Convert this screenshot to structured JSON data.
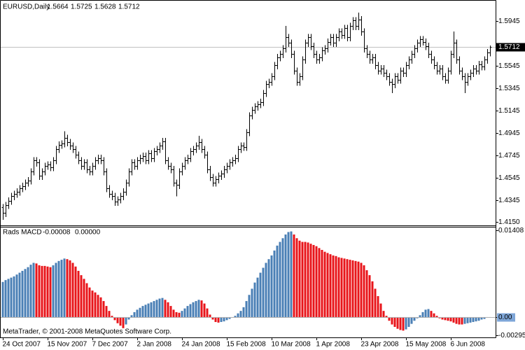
{
  "chart_data": [
    {
      "type": "ohlc",
      "title": "EURUSD,Daily",
      "color": "#000000",
      "last_line_color": "#c0c0c0",
      "categories": [
        "24 Oct 2007",
        null,
        null,
        null,
        null,
        null,
        null,
        null,
        null,
        null,
        null,
        null,
        null,
        null,
        null,
        null,
        "15 Nov 2007",
        null,
        null,
        null,
        null,
        null,
        null,
        null,
        null,
        null,
        null,
        null,
        null,
        null,
        null,
        null,
        "7 Dec 2007",
        null,
        null,
        null,
        null,
        null,
        null,
        null,
        null,
        null,
        null,
        null,
        null,
        null,
        null,
        null,
        "2 Jan 2008",
        null,
        null,
        null,
        null,
        null,
        null,
        null,
        null,
        null,
        null,
        null,
        null,
        null,
        null,
        null,
        "24 Jan 2008",
        null,
        null,
        null,
        null,
        null,
        null,
        null,
        null,
        null,
        null,
        null,
        null,
        null,
        null,
        null,
        "15 Feb 2008",
        null,
        null,
        null,
        null,
        null,
        null,
        null,
        null,
        null,
        null,
        null,
        null,
        null,
        null,
        null,
        "10 Mar 2008",
        null,
        null,
        null,
        null,
        null,
        null,
        null,
        null,
        null,
        null,
        null,
        null,
        null,
        null,
        null,
        "1 Apr 2008",
        null,
        null,
        null,
        null,
        null,
        null,
        null,
        null,
        null,
        null,
        null,
        null,
        null,
        null,
        null,
        "23 Apr 2008",
        null,
        null,
        null,
        null,
        null,
        null,
        null,
        null,
        null,
        null,
        null,
        null,
        null,
        null,
        null,
        "15 May 2008",
        null,
        null,
        null,
        null,
        null,
        null,
        null,
        null,
        null,
        null,
        null,
        null,
        null,
        null,
        null,
        "6 Jun 2008",
        null,
        null,
        null,
        null,
        null,
        null,
        null,
        null,
        null,
        null,
        null,
        null,
        null,
        null
      ],
      "open": [
        1.428,
        1.423,
        1.43,
        1.434,
        1.438,
        1.44,
        1.442,
        1.445,
        1.447,
        1.45,
        1.452,
        1.46,
        1.47,
        1.468,
        1.456,
        1.46,
        1.465,
        1.466,
        1.464,
        1.47,
        1.48,
        1.484,
        1.485,
        1.49,
        1.486,
        1.483,
        1.48,
        1.475,
        1.47,
        1.465,
        1.468,
        1.462,
        1.46,
        1.465,
        1.47,
        1.472,
        1.47,
        1.46,
        1.445,
        1.44,
        1.438,
        1.433,
        1.435,
        1.438,
        1.442,
        1.45,
        1.46,
        1.468,
        1.465,
        1.47,
        1.472,
        1.474,
        1.47,
        1.476,
        1.472,
        1.478,
        1.48,
        1.483,
        1.487,
        1.47,
        1.465,
        1.462,
        1.45,
        1.448,
        1.46,
        1.465,
        1.47,
        1.472,
        1.478,
        1.48,
        1.483,
        1.486,
        1.48,
        1.475,
        1.462,
        1.455,
        1.45,
        1.453,
        1.456,
        1.458,
        1.462,
        1.465,
        1.468,
        1.47,
        1.472,
        1.48,
        1.483,
        1.482,
        1.495,
        1.51,
        1.515,
        1.518,
        1.52,
        1.522,
        1.53,
        1.538,
        1.54,
        1.545,
        1.555,
        1.562,
        1.565,
        1.57,
        1.58,
        1.575,
        1.565,
        1.55,
        1.54,
        1.545,
        1.56,
        1.575,
        1.58,
        1.572,
        1.565,
        1.56,
        1.562,
        1.568,
        1.57,
        1.576,
        1.58,
        1.575,
        1.58,
        1.585,
        1.582,
        1.588,
        1.58,
        1.59,
        1.595,
        1.59,
        1.596,
        1.585,
        1.57,
        1.565,
        1.56,
        1.562,
        1.555,
        1.55,
        1.552,
        1.548,
        1.545,
        1.54,
        1.538,
        1.545,
        1.542,
        1.55,
        1.548,
        1.555,
        1.56,
        1.565,
        1.57,
        1.575,
        1.578,
        1.576,
        1.572,
        1.565,
        1.56,
        1.555,
        1.55,
        1.552,
        1.545,
        1.542,
        1.55,
        1.565,
        1.575,
        1.56,
        1.55,
        1.545,
        1.54,
        1.545,
        1.548,
        1.552,
        1.55,
        1.556,
        1.554,
        1.56,
        1.5664
      ],
      "high": [
        1.431,
        1.433,
        1.437,
        1.441,
        1.443,
        1.445,
        1.448,
        1.45,
        1.453,
        1.455,
        1.463,
        1.473,
        1.473,
        1.471,
        1.463,
        1.468,
        1.469,
        1.469,
        1.473,
        1.483,
        1.487,
        1.488,
        1.496,
        1.493,
        1.489,
        1.486,
        1.483,
        1.478,
        1.473,
        1.471,
        1.471,
        1.465,
        1.468,
        1.473,
        1.475,
        1.475,
        1.473,
        1.463,
        1.448,
        1.443,
        1.441,
        1.438,
        1.441,
        1.445,
        1.453,
        1.463,
        1.471,
        1.471,
        1.473,
        1.475,
        1.477,
        1.477,
        1.479,
        1.479,
        1.481,
        1.483,
        1.486,
        1.49,
        1.49,
        1.473,
        1.468,
        1.465,
        1.453,
        1.463,
        1.468,
        1.473,
        1.475,
        1.481,
        1.483,
        1.486,
        1.492,
        1.489,
        1.483,
        1.478,
        1.465,
        1.458,
        1.456,
        1.459,
        1.461,
        1.465,
        1.468,
        1.471,
        1.473,
        1.475,
        1.483,
        1.486,
        1.486,
        1.498,
        1.513,
        1.518,
        1.521,
        1.523,
        1.525,
        1.533,
        1.541,
        1.543,
        1.548,
        1.558,
        1.565,
        1.568,
        1.573,
        1.59,
        1.583,
        1.578,
        1.568,
        1.553,
        1.548,
        1.563,
        1.578,
        1.583,
        1.583,
        1.575,
        1.568,
        1.565,
        1.571,
        1.573,
        1.579,
        1.583,
        1.583,
        1.583,
        1.588,
        1.588,
        1.591,
        1.591,
        1.593,
        1.598,
        1.598,
        1.602,
        1.599,
        1.588,
        1.573,
        1.568,
        1.565,
        1.565,
        1.558,
        1.555,
        1.555,
        1.551,
        1.548,
        1.543,
        1.548,
        1.548,
        1.553,
        1.553,
        1.558,
        1.563,
        1.568,
        1.573,
        1.578,
        1.581,
        1.581,
        1.579,
        1.575,
        1.568,
        1.563,
        1.558,
        1.555,
        1.555,
        1.548,
        1.553,
        1.568,
        1.585,
        1.578,
        1.563,
        1.553,
        1.548,
        1.548,
        1.551,
        1.555,
        1.555,
        1.559,
        1.559,
        1.563,
        1.5694,
        1.5725
      ],
      "low": [
        1.417,
        1.4195,
        1.4265,
        1.4305,
        1.4345,
        1.4365,
        1.4385,
        1.4415,
        1.4435,
        1.4465,
        1.4485,
        1.4565,
        1.4645,
        1.4525,
        1.4525,
        1.4565,
        1.4615,
        1.4605,
        1.4605,
        1.4665,
        1.4765,
        1.4805,
        1.4815,
        1.4825,
        1.4795,
        1.4765,
        1.4715,
        1.4665,
        1.4615,
        1.4615,
        1.4585,
        1.4565,
        1.4565,
        1.4615,
        1.4665,
        1.4665,
        1.4565,
        1.4415,
        1.4365,
        1.4345,
        1.4295,
        1.4295,
        1.4315,
        1.4345,
        1.4385,
        1.4465,
        1.4565,
        1.4615,
        1.4615,
        1.4665,
        1.4685,
        1.4665,
        1.4665,
        1.4685,
        1.4685,
        1.4745,
        1.4765,
        1.4795,
        1.4665,
        1.4615,
        1.4585,
        1.4465,
        1.438,
        1.4445,
        1.4565,
        1.4615,
        1.4665,
        1.4685,
        1.4745,
        1.4765,
        1.4795,
        1.4765,
        1.4715,
        1.4585,
        1.4515,
        1.4465,
        1.4465,
        1.4495,
        1.4525,
        1.4545,
        1.4585,
        1.4615,
        1.4645,
        1.4665,
        1.4685,
        1.4765,
        1.4785,
        1.4785,
        1.4915,
        1.5065,
        1.5115,
        1.5145,
        1.5165,
        1.5185,
        1.5265,
        1.5345,
        1.5365,
        1.5415,
        1.5515,
        1.5585,
        1.5615,
        1.5665,
        1.5715,
        1.5615,
        1.5465,
        1.5365,
        1.5365,
        1.5415,
        1.5565,
        1.5715,
        1.5685,
        1.5615,
        1.5565,
        1.5565,
        1.5585,
        1.5645,
        1.5665,
        1.5725,
        1.5715,
        1.5715,
        1.5765,
        1.5785,
        1.5785,
        1.5765,
        1.5765,
        1.5865,
        1.5865,
        1.5865,
        1.5815,
        1.5665,
        1.5615,
        1.5565,
        1.5565,
        1.5515,
        1.5465,
        1.5465,
        1.5445,
        1.5415,
        1.5365,
        1.53,
        1.5345,
        1.5385,
        1.5385,
        1.5445,
        1.5445,
        1.5515,
        1.5565,
        1.5615,
        1.5665,
        1.5715,
        1.5725,
        1.5685,
        1.5615,
        1.5565,
        1.5515,
        1.5465,
        1.5465,
        1.5415,
        1.5385,
        1.5385,
        1.5465,
        1.5615,
        1.5565,
        1.5465,
        1.5415,
        1.53,
        1.5365,
        1.5415,
        1.5445,
        1.5465,
        1.5465,
        1.5505,
        1.5505,
        1.5565,
        1.5628
      ],
      "close": [
        1.423,
        1.43,
        1.434,
        1.438,
        1.44,
        1.442,
        1.445,
        1.447,
        1.45,
        1.452,
        1.46,
        1.47,
        1.468,
        1.456,
        1.46,
        1.465,
        1.466,
        1.464,
        1.47,
        1.48,
        1.484,
        1.485,
        1.49,
        1.486,
        1.483,
        1.48,
        1.475,
        1.47,
        1.465,
        1.468,
        1.462,
        1.46,
        1.465,
        1.47,
        1.472,
        1.47,
        1.46,
        1.445,
        1.44,
        1.438,
        1.433,
        1.435,
        1.438,
        1.442,
        1.45,
        1.46,
        1.468,
        1.465,
        1.47,
        1.472,
        1.474,
        1.47,
        1.476,
        1.472,
        1.478,
        1.48,
        1.483,
        1.487,
        1.47,
        1.465,
        1.462,
        1.45,
        1.448,
        1.46,
        1.465,
        1.47,
        1.472,
        1.478,
        1.48,
        1.483,
        1.486,
        1.48,
        1.475,
        1.462,
        1.455,
        1.45,
        1.453,
        1.456,
        1.458,
        1.462,
        1.465,
        1.468,
        1.47,
        1.472,
        1.48,
        1.483,
        1.482,
        1.495,
        1.51,
        1.515,
        1.518,
        1.52,
        1.522,
        1.53,
        1.538,
        1.54,
        1.545,
        1.555,
        1.562,
        1.565,
        1.57,
        1.58,
        1.575,
        1.565,
        1.55,
        1.54,
        1.545,
        1.56,
        1.575,
        1.58,
        1.572,
        1.565,
        1.56,
        1.562,
        1.568,
        1.57,
        1.576,
        1.58,
        1.575,
        1.58,
        1.585,
        1.582,
        1.588,
        1.58,
        1.59,
        1.595,
        1.59,
        1.596,
        1.585,
        1.57,
        1.565,
        1.56,
        1.562,
        1.555,
        1.55,
        1.552,
        1.548,
        1.545,
        1.54,
        1.538,
        1.545,
        1.542,
        1.55,
        1.548,
        1.555,
        1.56,
        1.565,
        1.57,
        1.575,
        1.578,
        1.576,
        1.572,
        1.565,
        1.56,
        1.555,
        1.55,
        1.552,
        1.545,
        1.542,
        1.55,
        1.565,
        1.575,
        1.56,
        1.55,
        1.545,
        1.54,
        1.545,
        1.548,
        1.552,
        1.55,
        1.556,
        1.554,
        1.56,
        1.5664,
        1.5712
      ],
      "ylim": [
        1.4119,
        1.612
      ],
      "yticks": [
        1.5945,
        1.5545,
        1.5345,
        1.5145,
        1.4945,
        1.4745,
        1.4545,
        1.4345,
        {
          "value": 1.415,
          "label": "1.4150"
        }
      ]
    },
    {
      "type": "bar",
      "title": "Rads MACD",
      "up_color": "#4a7fb5",
      "down_color": "#e8141a",
      "signal": {
        "value": 0,
        "label": "0.00000"
      },
      "annotation": "MetaTrader, © 2001-2008 MetaQuotes Software Corp.",
      "values": [
        0.0057,
        0.006,
        0.0062,
        0.0064,
        0.0066,
        0.0069,
        0.0072,
        0.0075,
        0.0078,
        0.0081,
        0.0085,
        0.0088,
        0.0087,
        0.0084,
        0.0083,
        0.0083,
        0.0082,
        0.0081,
        0.0084,
        0.0088,
        0.0091,
        0.0093,
        0.0095,
        0.0094,
        0.0092,
        0.0088,
        0.0082,
        0.0075,
        0.0068,
        0.0062,
        0.0055,
        0.0048,
        0.0043,
        0.004,
        0.0036,
        0.0032,
        0.0026,
        0.0018,
        0.001,
        0.0002,
        -0.0005,
        -0.001,
        -0.0014,
        -0.0018,
        -0.0012,
        -0.0004,
        0.0003,
        0.0008,
        0.0012,
        0.0015,
        0.0018,
        0.002,
        0.0022,
        0.0024,
        0.0026,
        0.0028,
        0.003,
        0.0031,
        0.0028,
        0.0024,
        0.0018,
        0.0012,
        0.0008,
        0.0007,
        0.001,
        0.0014,
        0.0018,
        0.0021,
        0.0024,
        0.0026,
        0.0028,
        0.0027,
        0.0022,
        0.0014,
        0.0004,
        -0.0004,
        -0.0008,
        -0.0009,
        -0.0008,
        -0.0007,
        -0.0005,
        -0.0003,
        -0.0001,
        0.0002,
        0.0006,
        0.001,
        0.0016,
        0.0026,
        0.0036,
        0.0046,
        0.0056,
        0.0064,
        0.0072,
        0.008,
        0.0088,
        0.0094,
        0.01,
        0.0108,
        0.0116,
        0.0122,
        0.0128,
        0.0134,
        0.0138,
        0.0139,
        0.0134,
        0.0128,
        0.0124,
        0.0122,
        0.0122,
        0.0121,
        0.0119,
        0.0117,
        0.0115,
        0.0112,
        0.0109,
        0.0106,
        0.0104,
        0.0102,
        0.01,
        0.0099,
        0.0097,
        0.0096,
        0.0095,
        0.0094,
        0.0093,
        0.0092,
        0.0091,
        0.009,
        0.0088,
        0.0084,
        0.0076,
        0.0068,
        0.0058,
        0.0046,
        0.0034,
        0.0022,
        0.001,
        0.0002,
        -0.0006,
        -0.0012,
        -0.0016,
        -0.0019,
        -0.0021,
        -0.0022,
        -0.002,
        -0.0016,
        -0.0011,
        -0.0006,
        -0.0002,
        0.0003,
        0.0008,
        0.0012,
        0.0013,
        0.001,
        0.0006,
        0.0002,
        -0.0002,
        -0.0004,
        -0.0005,
        -0.0006,
        -0.0007,
        -0.0009,
        -0.0011,
        -0.0012,
        -0.0012,
        -0.0011,
        -0.001,
        -0.0009,
        -0.0008,
        -0.0007,
        -0.0006,
        -0.0004,
        -0.0003,
        -0.0001,
        -8e-05
      ],
      "ylim": [
        -0.0033,
        0.01465
      ],
      "yticks": [
        0.01408,
        {
          "value": 0,
          "label": "0.00"
        },
        -0.00295
      ]
    }
  ]
}
